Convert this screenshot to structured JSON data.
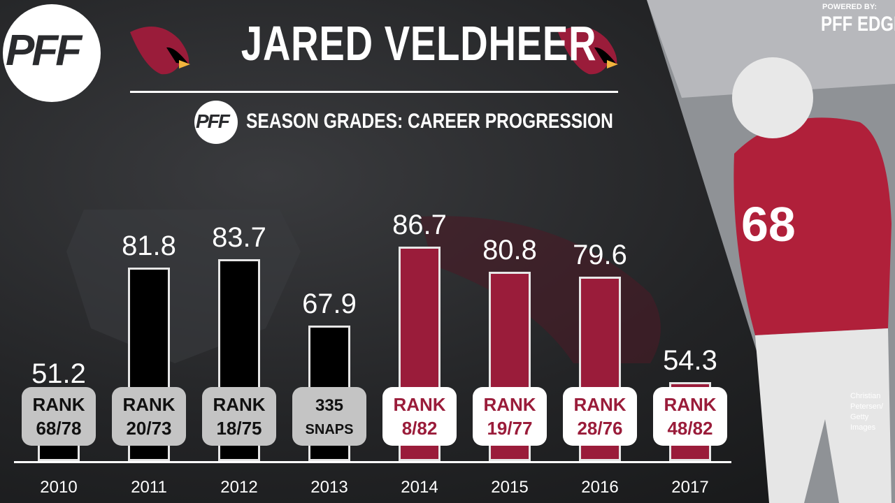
{
  "header": {
    "title": "JARED VELDHEER",
    "subtitle": "SEASON GRADES: CAREER PROGRESSION",
    "logo_text": "PFF",
    "brand_small": "POWERED BY:",
    "brand_main": "PFF EDGE"
  },
  "photo_credit": [
    "Christian",
    "Petersen/",
    "Getty Images"
  ],
  "colors": {
    "raiders_bar": "#000000",
    "cardinals_bar": "#9a1c3a",
    "raiders_badge": "#c4c4c4",
    "cardinals_badge": "#ffffff"
  },
  "chart_data": {
    "type": "bar",
    "title": "SEASON GRADES: CAREER PROGRESSION",
    "categories": [
      "2010",
      "2011",
      "2012",
      "2013",
      "2014",
      "2015",
      "2016",
      "2017"
    ],
    "series": [
      {
        "values": [
          51.2,
          81.8,
          83.7,
          67.9,
          86.7,
          80.8,
          79.6,
          54.3
        ]
      }
    ],
    "badges": [
      [
        "RANK",
        "68/78"
      ],
      [
        "RANK",
        "20/73"
      ],
      [
        "RANK",
        "18/75"
      ],
      [
        "335",
        "SNAPS"
      ],
      [
        "RANK",
        "8/82"
      ],
      [
        "RANK",
        "19/77"
      ],
      [
        "RANK",
        "28/76"
      ],
      [
        "RANK",
        "48/82"
      ]
    ],
    "team": [
      "raiders",
      "raiders",
      "raiders",
      "raiders",
      "cardinals",
      "cardinals",
      "cardinals",
      "cardinals"
    ],
    "grid": false,
    "legend": "none"
  }
}
